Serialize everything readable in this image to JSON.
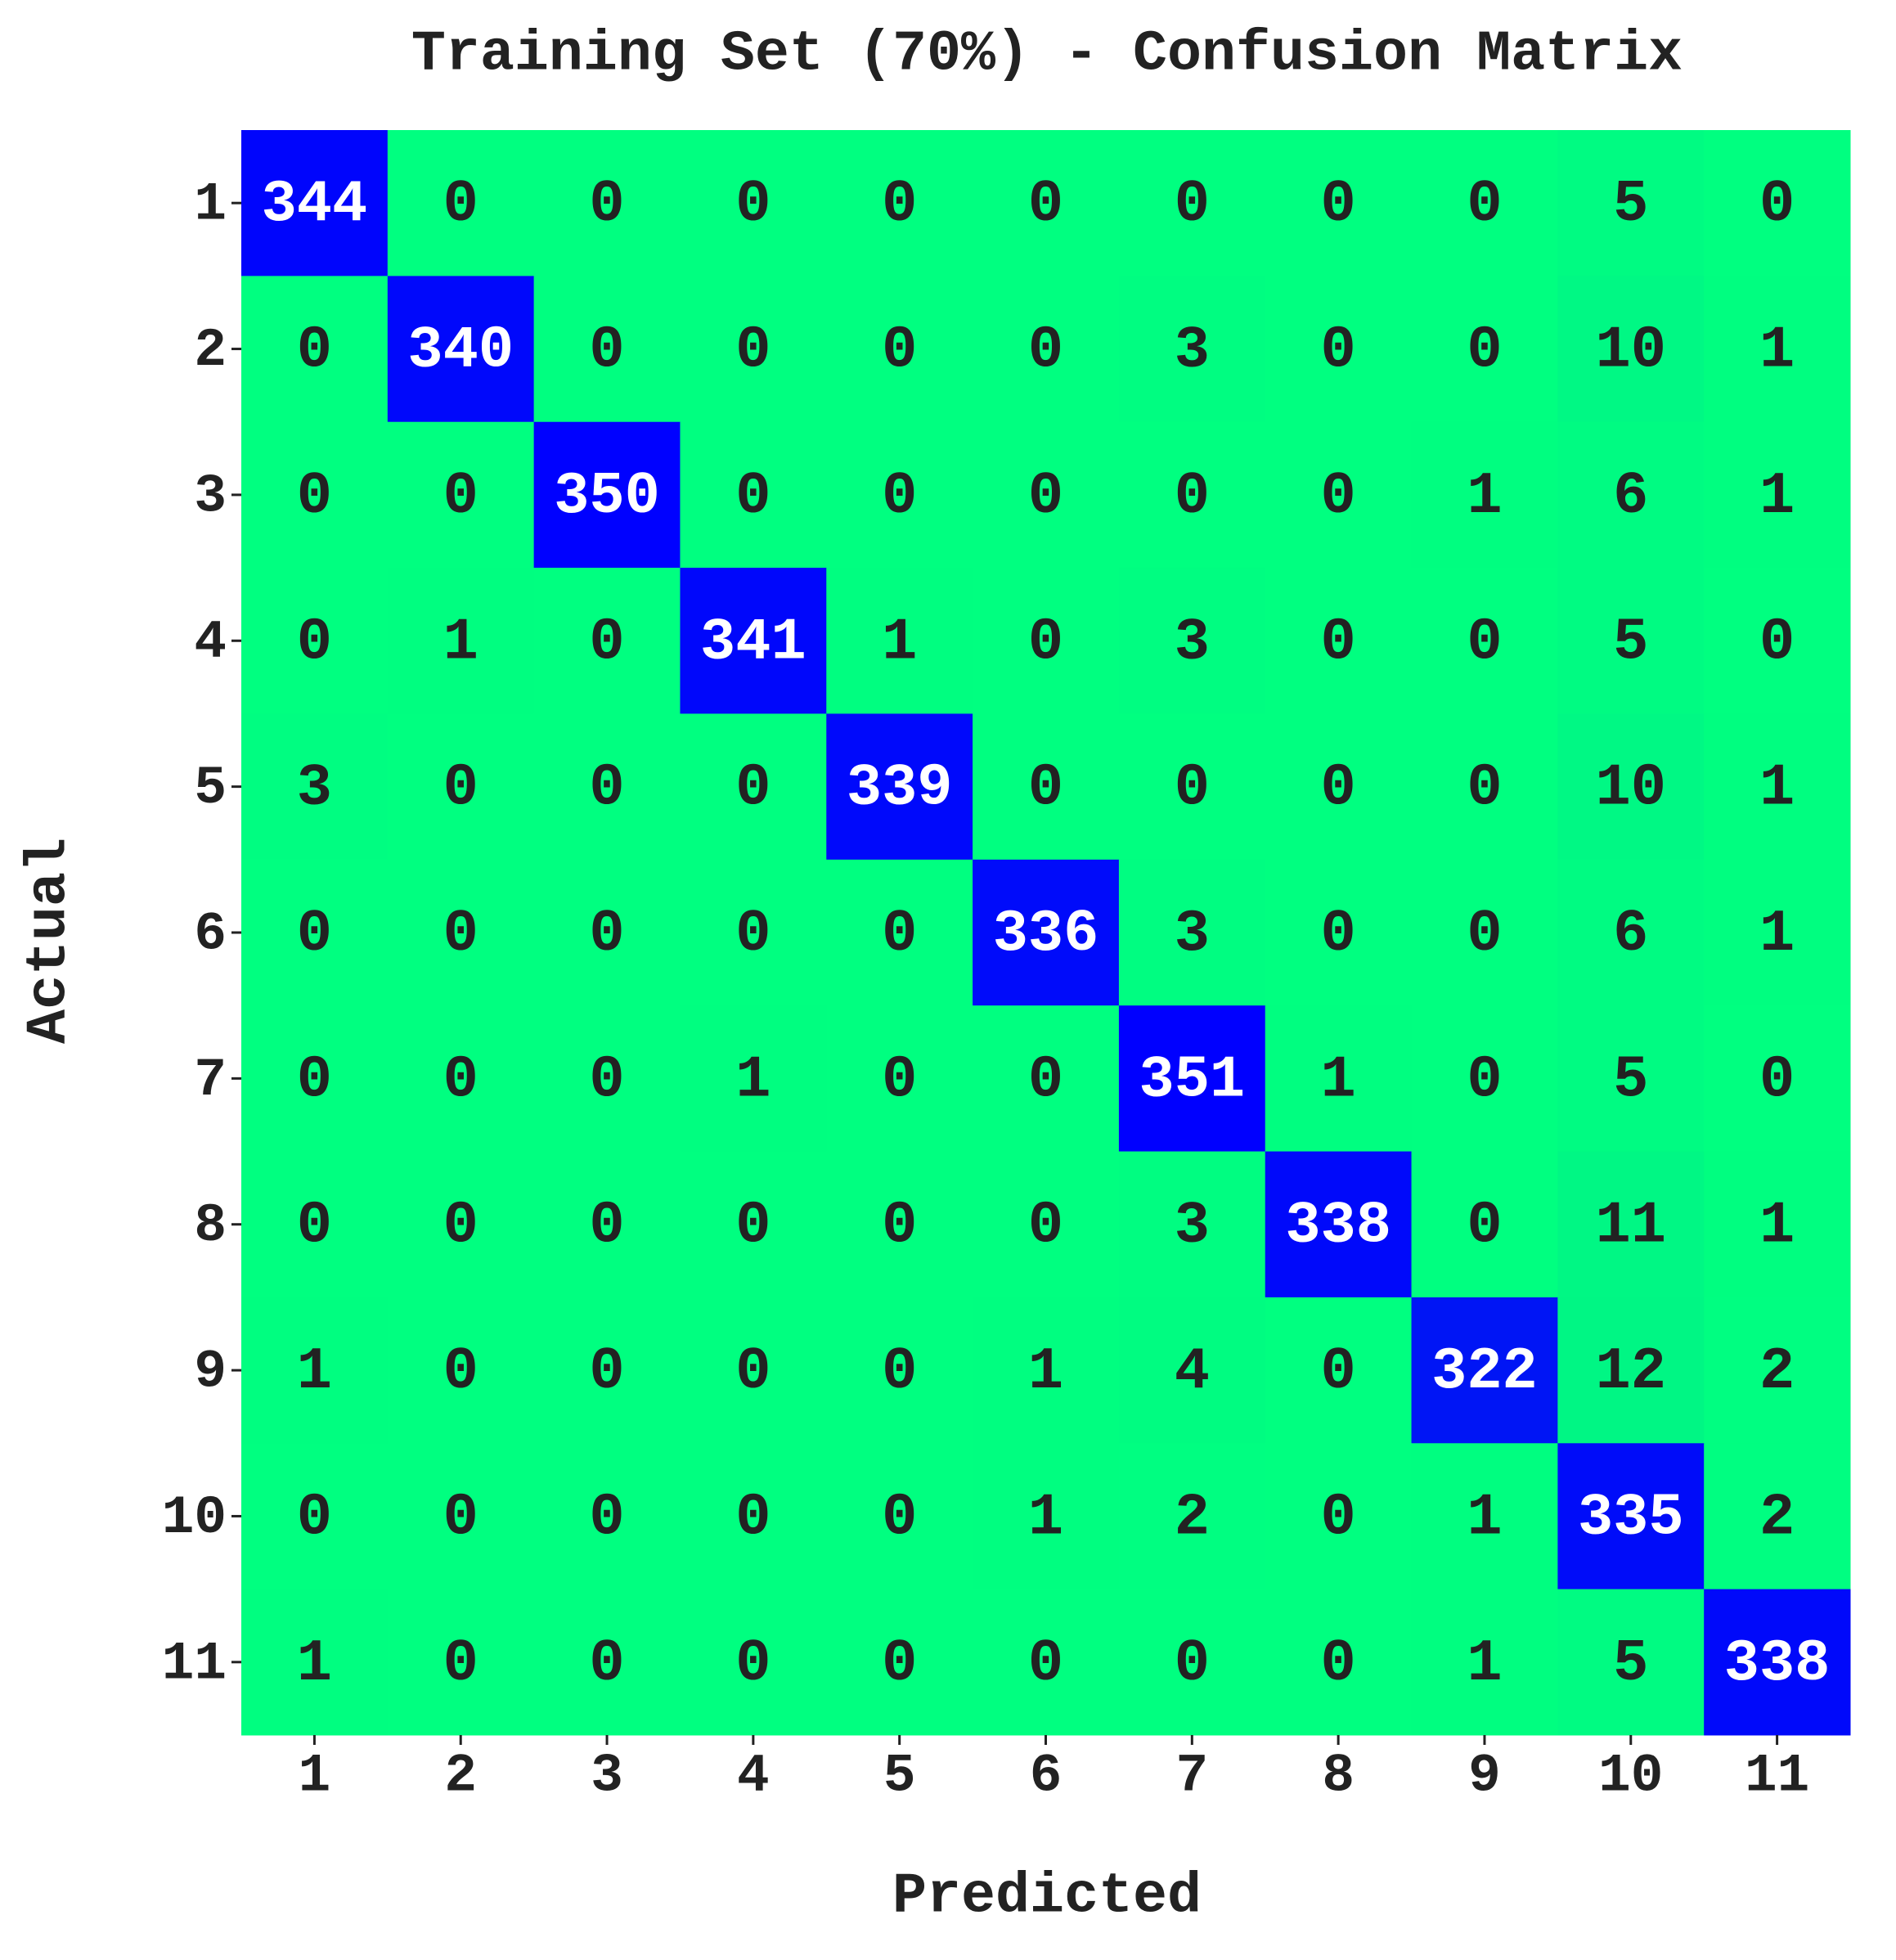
{
  "chart_data": {
    "type": "heatmap",
    "title": "Training Set (70%) - Confusion Matrix",
    "xlabel": "Predicted",
    "ylabel": "Actual",
    "x_categories": [
      "1",
      "2",
      "3",
      "4",
      "5",
      "6",
      "7",
      "8",
      "9",
      "10",
      "11"
    ],
    "y_categories": [
      "1",
      "2",
      "3",
      "4",
      "5",
      "6",
      "7",
      "8",
      "9",
      "10",
      "11"
    ],
    "colors": [
      "#00ff80",
      "#0000ff"
    ],
    "matrix": [
      [
        344,
        0,
        0,
        0,
        0,
        0,
        0,
        0,
        0,
        5,
        0
      ],
      [
        0,
        340,
        0,
        0,
        0,
        0,
        3,
        0,
        0,
        10,
        1
      ],
      [
        0,
        0,
        350,
        0,
        0,
        0,
        0,
        0,
        1,
        6,
        1
      ],
      [
        0,
        1,
        0,
        341,
        1,
        0,
        3,
        0,
        0,
        5,
        0
      ],
      [
        3,
        0,
        0,
        0,
        339,
        0,
        0,
        0,
        0,
        10,
        1
      ],
      [
        0,
        0,
        0,
        0,
        0,
        336,
        3,
        0,
        0,
        6,
        1
      ],
      [
        0,
        0,
        0,
        1,
        0,
        0,
        351,
        1,
        0,
        5,
        0
      ],
      [
        0,
        0,
        0,
        0,
        0,
        0,
        3,
        338,
        0,
        11,
        1
      ],
      [
        1,
        0,
        0,
        0,
        0,
        1,
        4,
        0,
        322,
        12,
        2
      ],
      [
        0,
        0,
        0,
        0,
        0,
        1,
        2,
        0,
        1,
        335,
        2
      ],
      [
        1,
        0,
        0,
        0,
        0,
        0,
        0,
        0,
        1,
        5,
        338
      ]
    ]
  }
}
